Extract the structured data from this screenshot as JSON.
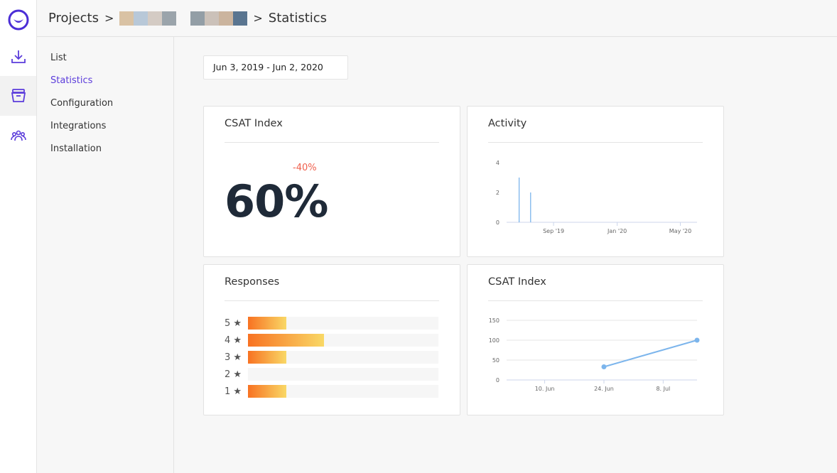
{
  "header": {
    "root": "Projects",
    "separator": ">",
    "current": "Statistics"
  },
  "rail": {
    "items": [
      "logo-icon",
      "download-icon",
      "archive-icon",
      "users-icon"
    ]
  },
  "subnav": {
    "items": [
      {
        "label": "List"
      },
      {
        "label": "Statistics",
        "active": true
      },
      {
        "label": "Configuration"
      },
      {
        "label": "Integrations"
      },
      {
        "label": "Installation"
      }
    ]
  },
  "date_range": "Jun 3, 2019 - Jun 2, 2020",
  "csat_card": {
    "title": "CSAT Index",
    "value": "60%",
    "delta": "-40%",
    "delta_color": "#f0604d"
  },
  "activity_card": {
    "title": "Activity"
  },
  "responses_card": {
    "title": "Responses",
    "rows": [
      {
        "label": "5 ★",
        "percent": 20
      },
      {
        "label": "4 ★",
        "percent": 40
      },
      {
        "label": "3 ★",
        "percent": 20
      },
      {
        "label": "2 ★",
        "percent": 0
      },
      {
        "label": "1 ★",
        "percent": 20
      }
    ]
  },
  "csat_chart_card": {
    "title": "CSAT Index"
  },
  "chart_data": [
    {
      "type": "bar",
      "title": "Activity",
      "x_range": [
        "2019-06-03",
        "2020-06-02"
      ],
      "ylim": [
        0,
        4
      ],
      "yticks": [
        "0",
        "2",
        "4"
      ],
      "xticks": [
        {
          "label": "Sep '19",
          "date": "2019-09-01"
        },
        {
          "label": "Jan '20",
          "date": "2020-01-01"
        },
        {
          "label": "May '20",
          "date": "2020-05-01"
        }
      ],
      "points": [
        {
          "date": "2019-06-27",
          "value": 3
        },
        {
          "date": "2019-07-19",
          "value": 2
        }
      ],
      "color": "#7cb5ec"
    },
    {
      "type": "line",
      "title": "CSAT Index",
      "x_range": [
        "2019-06-01",
        "2019-07-16"
      ],
      "ylim": [
        0,
        150
      ],
      "yticks": [
        "0",
        "50",
        "100",
        "150"
      ],
      "xticks": [
        {
          "label": "10. Jun",
          "date": "2019-06-10"
        },
        {
          "label": "24. Jun",
          "date": "2019-06-24"
        },
        {
          "label": "8. Jul",
          "date": "2019-07-08"
        }
      ],
      "points": [
        {
          "date": "2019-06-24",
          "value": 33
        },
        {
          "date": "2019-07-16",
          "value": 100
        }
      ],
      "color": "#7cb5ec"
    }
  ]
}
